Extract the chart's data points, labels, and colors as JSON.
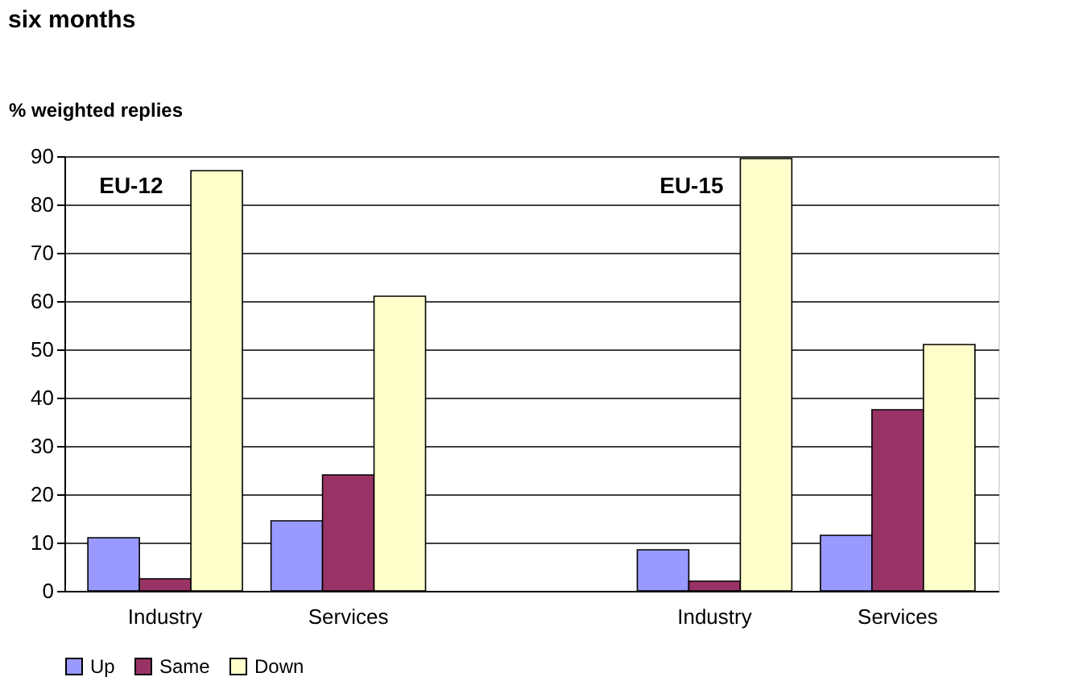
{
  "chart_data": {
    "type": "bar",
    "title": "six months",
    "ylabel": "% weighted replies",
    "categories": [
      "Industry",
      "Services",
      null,
      "Industry",
      "Services"
    ],
    "series": [
      {
        "name": "Up",
        "color": "#9999ff",
        "values": [
          11,
          14.5,
          null,
          8.5,
          11.5
        ]
      },
      {
        "name": "Same",
        "color": "#993366",
        "values": [
          2.5,
          24,
          null,
          2,
          37.5
        ]
      },
      {
        "name": "Down",
        "color": "#ffffcc",
        "values": [
          87,
          61,
          null,
          89.5,
          51
        ]
      }
    ],
    "annotations": [
      "EU-12",
      "EU-15"
    ],
    "ylim": [
      0,
      90
    ],
    "yticks": [
      0,
      10,
      20,
      30,
      40,
      50,
      60,
      70,
      80,
      90
    ],
    "grid": "y",
    "legend": "bottom"
  }
}
